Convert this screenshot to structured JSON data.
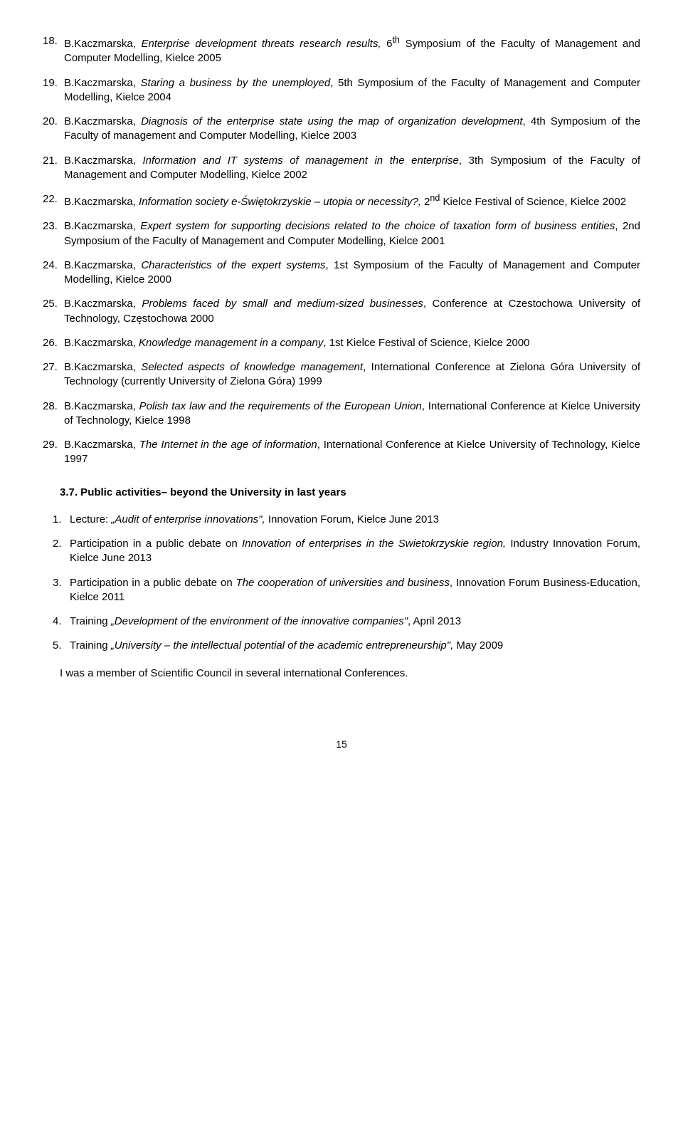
{
  "items1": [
    {
      "n": "18.",
      "html": "B.Kaczmarska, <span class='italic'>Enterprise development threats research results,</span> 6<sup>th</sup> Symposium of the Faculty of Management and Computer Modelling, Kielce 2005"
    },
    {
      "n": "19.",
      "html": "B.Kaczmarska, <span class='italic'>Staring a business by the unemployed</span>, 5th Symposium of the Faculty of Management and Computer Modelling, Kielce 2004"
    },
    {
      "n": "20.",
      "html": "B.Kaczmarska, <span class='italic'>Diagnosis of the enterprise state using the map of organization development</span>, 4th Symposium of the Faculty of management and Computer Modelling, Kielce 2003"
    },
    {
      "n": "21.",
      "html": "B.Kaczmarska, <span class='italic'>Information and IT systems of management in the enterprise</span>, 3th Symposium of the Faculty of Management and Computer Modelling, Kielce 2002"
    },
    {
      "n": "22.",
      "html": "B.Kaczmarska, <span class='italic'>Information society e-Świętokrzyskie – utopia or necessity?,</span> 2<sup>nd</sup> Kielce Festival of Science, Kielce 2002"
    },
    {
      "n": "23.",
      "html": "B.Kaczmarska, <span class='italic'>Expert system for supporting decisions related to the choice of taxation form of business entities</span>, 2nd Symposium of the Faculty of Management and Computer Modelling, Kielce 2001"
    },
    {
      "n": "24.",
      "html": "B.Kaczmarska, <span class='italic'>Characteristics of the expert systems</span>, 1st Symposium of the Faculty of Management and Computer Modelling, Kielce 2000"
    },
    {
      "n": "25.",
      "html": "B.Kaczmarska, <span class='italic'>Problems faced by small and medium-sized businesses</span>, Conference at Czestochowa University of Technology, Częstochowa 2000"
    },
    {
      "n": "26.",
      "html": "B.Kaczmarska, <span class='italic'>Knowledge management in a company</span>, 1st Kielce Festival of Science, Kielce 2000"
    },
    {
      "n": "27.",
      "html": "B.Kaczmarska, <span class='italic'>Selected aspects of knowledge management</span>, International Conference at Zielona Góra University of Technology (currently University of Zielona Góra) 1999"
    },
    {
      "n": "28.",
      "html": "B.Kaczmarska, <span class='italic'>Polish tax law and the requirements of the European Union</span>, International Conference at Kielce University of Technology, Kielce 1998"
    },
    {
      "n": "29.",
      "html": "B.Kaczmarska, <span class='italic'>The Internet in the age of information</span>, International Conference at Kielce University of Technology, Kielce 1997"
    }
  ],
  "heading": "3.7. Public activities– beyond the University in last years",
  "items2": [
    {
      "n": "1.",
      "html": "Lecture: <span class='italic'>„Audit of enterprise innovations\",</span> Innovation Forum, Kielce June 2013"
    },
    {
      "n": "2.",
      "html": "Participation in a public debate on <span class='italic'>Innovation of enterprises in the Swietokrzyskie region,</span> Industry Innovation Forum, Kielce June 2013"
    },
    {
      "n": "3.",
      "html": "Participation in a public debate on <span class='italic'>The cooperation of universities and business</span>, Innovation Forum Business-Education, Kielce 2011"
    },
    {
      "n": "4.",
      "html": "Training <span class='italic'>„Development of the environment of the innovative companies\"</span>, April 2013"
    },
    {
      "n": "5.",
      "html": "Training <span class='italic'>„University – the intellectual potential of the academic entrepreneurship\",</span> May 2009"
    }
  ],
  "closing": "I was a member of Scientific Council in several international Conferences.",
  "pageNum": "15"
}
